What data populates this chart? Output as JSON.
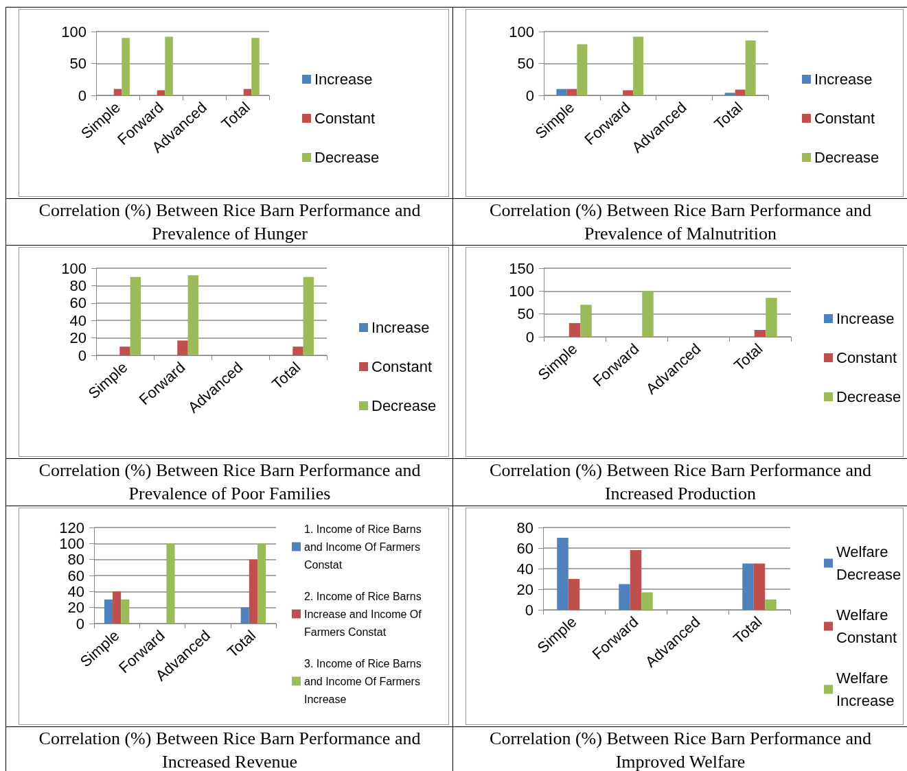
{
  "chart_data": [
    {
      "type": "bar",
      "title": "Correlation (%) Between Rice Barn Performance and Prevalence of Hunger",
      "categories": [
        "Simple",
        "Forward",
        "Advanced",
        "Total"
      ],
      "ylim": [
        0,
        100
      ],
      "yticks": [
        0,
        50,
        100
      ],
      "grid": "y",
      "legend": "right",
      "series": [
        {
          "name": "Increase",
          "color": "#4f81bd",
          "values": [
            0,
            0,
            0,
            0
          ]
        },
        {
          "name": "Constant",
          "color": "#c0504d",
          "values": [
            10,
            8,
            0,
            10
          ]
        },
        {
          "name": "Decrease",
          "color": "#9bbb59",
          "values": [
            90,
            92,
            0,
            90
          ]
        }
      ]
    },
    {
      "type": "bar",
      "title": "Correlation (%) Between Rice Barn Performance and Prevalence of Malnutrition",
      "categories": [
        "Simple",
        "Forward",
        "Advanced",
        "Total"
      ],
      "ylim": [
        0,
        100
      ],
      "yticks": [
        0,
        50,
        100
      ],
      "grid": "y",
      "legend": "right",
      "series": [
        {
          "name": "Increase",
          "color": "#4f81bd",
          "values": [
            10,
            0,
            0,
            4
          ]
        },
        {
          "name": "Constant",
          "color": "#c0504d",
          "values": [
            10,
            8,
            0,
            9
          ]
        },
        {
          "name": "Decrease",
          "color": "#9bbb59",
          "values": [
            80,
            92,
            0,
            86
          ]
        }
      ]
    },
    {
      "type": "bar",
      "title": "Correlation (%) Between Rice Barn Performance and Prevalence of Poor Families",
      "categories": [
        "Simple",
        "Forward",
        "Advanced",
        "Total"
      ],
      "ylim": [
        0,
        100
      ],
      "yticks": [
        0,
        20,
        40,
        60,
        80,
        100
      ],
      "grid": "y",
      "legend": "right",
      "series": [
        {
          "name": "Increase",
          "color": "#4f81bd",
          "values": [
            0,
            0,
            0,
            0
          ]
        },
        {
          "name": "Constant",
          "color": "#c0504d",
          "values": [
            10,
            17,
            0,
            10
          ]
        },
        {
          "name": "Decrease",
          "color": "#9bbb59",
          "values": [
            90,
            92,
            0,
            90
          ]
        }
      ]
    },
    {
      "type": "bar",
      "title": "Correlation (%) Between Rice Barn Performance and Increased Production",
      "categories": [
        "Simple",
        "Forward",
        "Advanced",
        "Total"
      ],
      "ylim": [
        0,
        150
      ],
      "yticks": [
        0,
        50,
        100,
        150
      ],
      "grid": "y",
      "legend": "right",
      "series": [
        {
          "name": "Increase",
          "color": "#4f81bd",
          "values": [
            0,
            0,
            0,
            0
          ]
        },
        {
          "name": "Constant",
          "color": "#c0504d",
          "values": [
            30,
            0,
            0,
            15
          ]
        },
        {
          "name": "Decrease",
          "color": "#9bbb59",
          "values": [
            70,
            100,
            0,
            85
          ]
        }
      ]
    },
    {
      "type": "bar",
      "title": "Correlation (%) Between Rice Barn Performance and Increased Revenue",
      "categories": [
        "Simple",
        "Forward",
        "Advanced",
        "Total"
      ],
      "ylim": [
        0,
        120
      ],
      "yticks": [
        0,
        20,
        40,
        60,
        80,
        100,
        120
      ],
      "grid": "y",
      "legend": "right",
      "series": [
        {
          "name": "1. Income of Rice Barns and Income Of Farmers Constat",
          "color": "#4f81bd",
          "values": [
            30,
            0,
            0,
            20
          ]
        },
        {
          "name": "2. Income of Rice Barns Increase and Income Of Farmers Constat",
          "color": "#c0504d",
          "values": [
            40,
            0,
            0,
            80
          ]
        },
        {
          "name": "3. Income of Rice Barns and Income Of Farmers Increase",
          "color": "#9bbb59",
          "values": [
            30,
            100,
            0,
            100
          ]
        }
      ]
    },
    {
      "type": "bar",
      "title": "Correlation (%) Between Rice Barn Performance and Improved Welfare",
      "categories": [
        "Simple",
        "Forward",
        "Advanced",
        "Total"
      ],
      "ylim": [
        0,
        80
      ],
      "yticks": [
        0,
        20,
        40,
        60,
        80
      ],
      "grid": "y",
      "legend": "right",
      "series": [
        {
          "name": "Welfare Decrease",
          "color": "#4f81bd",
          "values": [
            70,
            25,
            0,
            45
          ]
        },
        {
          "name": "Welfare Constant",
          "color": "#c0504d",
          "values": [
            30,
            58,
            0,
            45
          ]
        },
        {
          "name": "Welfare Increase",
          "color": "#9bbb59",
          "values": [
            0,
            17,
            0,
            10
          ]
        }
      ]
    }
  ]
}
